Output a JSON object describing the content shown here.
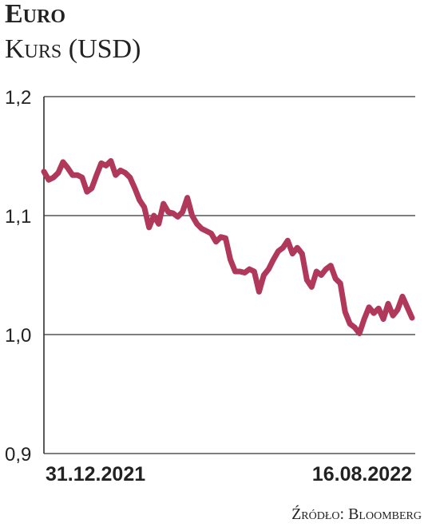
{
  "chart_data": {
    "type": "line",
    "title": "Euro",
    "subtitle": "Kurs (USD)",
    "source": "Źródło: Bloomberg",
    "categories": [
      "31.12.2021",
      null,
      null,
      null,
      null,
      null,
      null,
      null,
      null,
      null,
      null,
      null,
      null,
      null,
      null,
      null,
      null,
      null,
      null,
      null,
      null,
      null,
      null,
      null,
      null,
      null,
      null,
      null,
      null,
      null,
      null,
      null,
      null,
      null,
      null,
      null,
      null,
      null,
      null,
      null,
      null,
      null,
      null,
      null,
      null,
      null,
      null,
      null,
      null,
      null,
      null,
      null,
      null,
      null,
      null,
      null,
      null,
      null,
      null,
      null,
      null,
      null,
      null,
      null,
      null,
      null,
      null,
      null,
      null,
      null,
      null,
      null,
      null,
      null,
      null,
      null,
      null,
      "16.08.2022"
    ],
    "values": [
      1.137,
      1.13,
      1.132,
      1.136,
      1.145,
      1.14,
      1.134,
      1.134,
      1.132,
      1.12,
      1.123,
      1.134,
      1.144,
      1.142,
      1.146,
      1.134,
      1.138,
      1.136,
      1.132,
      1.123,
      1.113,
      1.107,
      1.09,
      1.1,
      1.093,
      1.11,
      1.103,
      1.102,
      1.099,
      1.103,
      1.115,
      1.1,
      1.093,
      1.089,
      1.087,
      1.085,
      1.078,
      1.082,
      1.081,
      1.063,
      1.053,
      1.053,
      1.052,
      1.055,
      1.053,
      1.036,
      1.05,
      1.055,
      1.063,
      1.07,
      1.073,
      1.079,
      1.068,
      1.073,
      1.068,
      1.046,
      1.04,
      1.053,
      1.05,
      1.055,
      1.058,
      1.047,
      1.043,
      1.019,
      1.009,
      1.006,
      1.001,
      1.013,
      1.023,
      1.018,
      1.022,
      1.013,
      1.026,
      1.016,
      1.021,
      1.032,
      1.023,
      1.014
    ],
    "color": "#b0385a",
    "ylim": [
      0.9,
      1.2
    ],
    "yticks": [
      {
        "value": 0.9,
        "label": "0,9"
      },
      {
        "value": 1.0,
        "label": "1,0"
      },
      {
        "value": 1.1,
        "label": "1,1"
      },
      {
        "value": 1.2,
        "label": "1,2"
      }
    ],
    "grid": true
  }
}
